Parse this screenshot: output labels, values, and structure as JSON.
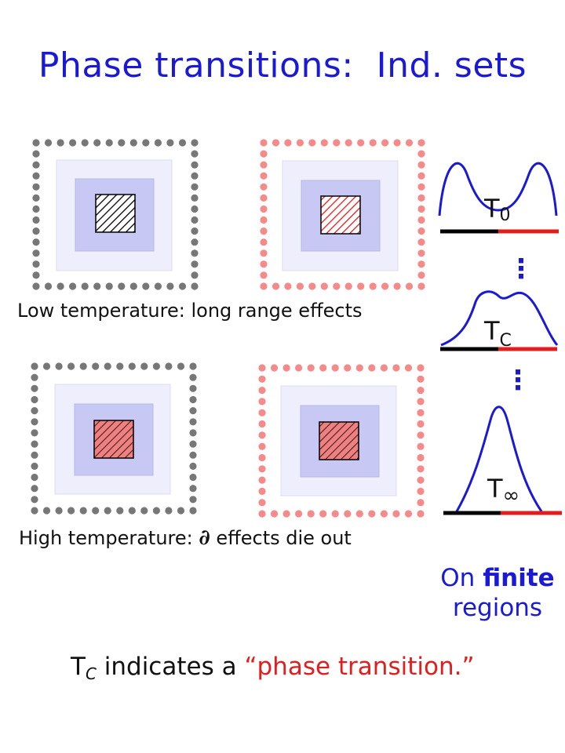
{
  "title": "Phase transitions:  Ind. sets",
  "captions": {
    "low": "Low temperature: long range effects",
    "high_before": "High temperature: ",
    "high_symbol": "∂",
    "high_after": " effects die out"
  },
  "curves": {
    "t0": {
      "base": "T",
      "sub": "0"
    },
    "tc": {
      "base": "T",
      "sub": "C"
    },
    "tinf": {
      "base": "T",
      "sub": "∞"
    },
    "ellipsis": "⋮"
  },
  "note": {
    "word1": "On ",
    "word2": "finite",
    "word3": "regions"
  },
  "footer": {
    "t": "T",
    "sub": "C",
    "middle": " indicates a ",
    "quote_open": "“",
    "highlight": "phase transition.",
    "quote_close": "”"
  },
  "colors": {
    "title_blue": "#1a1ad6",
    "dot_gray": "#777777",
    "dot_pink": "#f48a8a",
    "outer_region": "#eeeefc",
    "inner_region": "#c8c8f4",
    "red_line": "#e21d1d",
    "salmon_fill": "#f08080"
  }
}
